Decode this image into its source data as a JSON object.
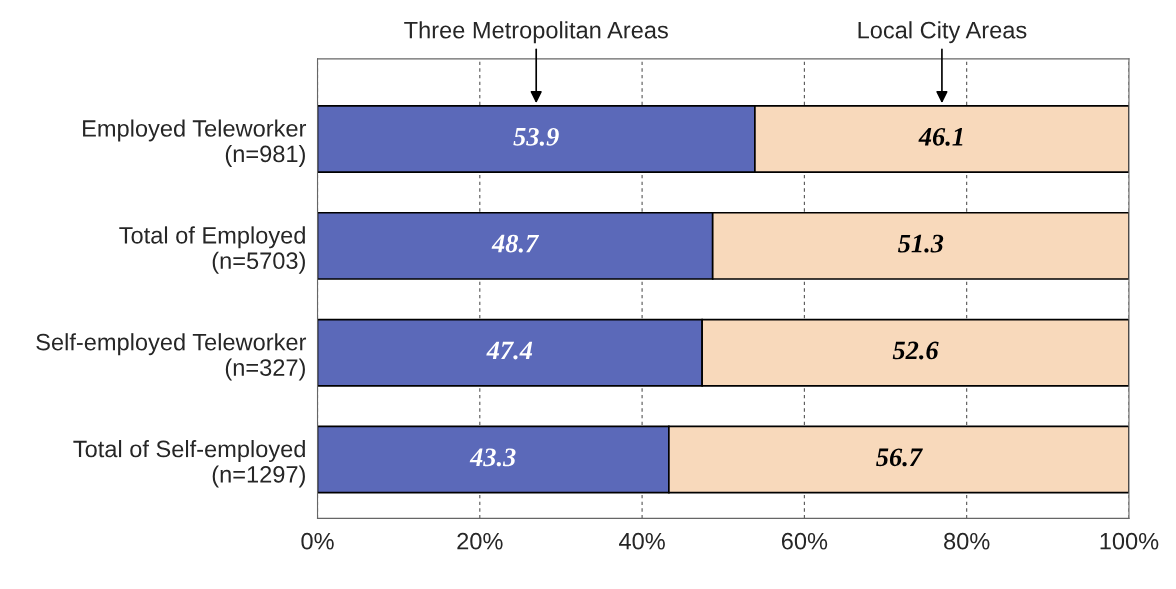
{
  "chart_data": {
    "type": "bar",
    "orientation": "horizontal",
    "stacked": true,
    "categories": [
      "Employed Teleworker\n(n=981)",
      "Total of Employed\n(n=5703)",
      "Self-employed Teleworker\n(n=327)",
      "Total of Self-employed\n(n=1297)"
    ],
    "series": [
      {
        "name": "Three Metropolitan Areas",
        "color": "#5b69b9",
        "values": [
          53.9,
          48.7,
          47.4,
          43.3
        ]
      },
      {
        "name": "Local City Areas",
        "color": "#f8d9bb",
        "values": [
          46.1,
          51.3,
          52.6,
          56.7
        ]
      }
    ],
    "xlim": [
      0,
      100
    ],
    "xticks": [
      {
        "value": 0,
        "label": "0%"
      },
      {
        "value": 20,
        "label": "20%"
      },
      {
        "value": 40,
        "label": "40%"
      },
      {
        "value": 60,
        "label": "60%"
      },
      {
        "value": 80,
        "label": "80%"
      },
      {
        "value": 100,
        "label": "100%"
      }
    ],
    "grid": "x",
    "legend": false,
    "data_labels": true
  }
}
